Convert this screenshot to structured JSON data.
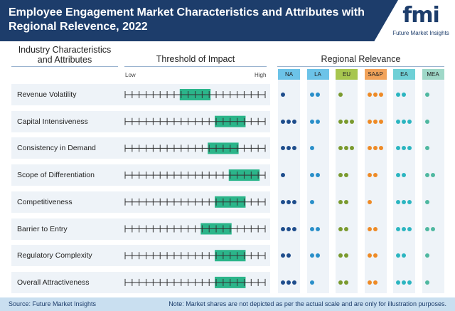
{
  "header": {
    "title": "Employee Engagement Market Characteristics and Attributes with Regional Relevence, 2022",
    "logo_text": "fmi",
    "logo_sub": "Future Market Insights"
  },
  "column_headers": {
    "characteristics": "Industry Characteristics and Attributes",
    "threshold": "Threshold of Impact",
    "regional": "Regional Relevance"
  },
  "scale_labels": {
    "low": "Low",
    "high": "High"
  },
  "colors": {
    "highlight": "#2bb58a",
    "header_dark": "#1d3d6b",
    "row_bg": "#eef3f8"
  },
  "chart_data": {
    "type": "table",
    "title": "Employee Engagement Market Characteristics and Attributes with Regional Relevence, 2022",
    "scale_ticks": 21,
    "rows": [
      {
        "label": "Revenue Volatility",
        "impact_start": 8,
        "impact_end": 12,
        "regional": [
          1,
          2,
          1,
          3,
          2,
          1
        ]
      },
      {
        "label": "Capital Intensiveness",
        "impact_start": 13,
        "impact_end": 17,
        "regional": [
          3,
          2,
          3,
          3,
          3,
          1
        ]
      },
      {
        "label": "Consistency in Demand",
        "impact_start": 12,
        "impact_end": 16,
        "regional": [
          3,
          1,
          3,
          3,
          3,
          1
        ]
      },
      {
        "label": "Scope of Differentiation",
        "impact_start": 15,
        "impact_end": 19,
        "regional": [
          1,
          2,
          2,
          2,
          2,
          2
        ]
      },
      {
        "label": "Competitiveness",
        "impact_start": 13,
        "impact_end": 17,
        "regional": [
          3,
          1,
          2,
          1,
          3,
          1
        ]
      },
      {
        "label": "Barrier to Entry",
        "impact_start": 11,
        "impact_end": 15,
        "regional": [
          3,
          2,
          2,
          2,
          3,
          2
        ]
      },
      {
        "label": "Regulatory Complexity",
        "impact_start": 13,
        "impact_end": 17,
        "regional": [
          2,
          2,
          2,
          2,
          2,
          1
        ]
      },
      {
        "label": "Overall Attractiveness",
        "impact_start": 13,
        "impact_end": 17,
        "regional": [
          3,
          1,
          2,
          2,
          3,
          1
        ]
      }
    ],
    "regions": [
      {
        "name": "NA",
        "badge": "#6cc3e8",
        "dot": "#1e4d8c"
      },
      {
        "name": "LA",
        "badge": "#6cc3e8",
        "dot": "#2a8fc9"
      },
      {
        "name": "EU",
        "badge": "#a7c64f",
        "dot": "#7a9a2e"
      },
      {
        "name": "SA&P",
        "badge": "#f2a35a",
        "dot": "#ee8a26"
      },
      {
        "name": "EA",
        "badge": "#6fd0d6",
        "dot": "#2bb5c0"
      },
      {
        "name": "MEA",
        "badge": "#9fd8c8",
        "dot": "#4fb8a0"
      }
    ]
  },
  "footer": {
    "source": "Source: Future Market Insights",
    "note": "Note: Market shares are not depicted as per the actual scale and are only for illustration purposes."
  }
}
